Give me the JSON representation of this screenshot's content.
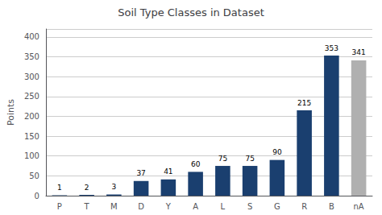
{
  "chart_data": {
    "type": "bar",
    "title": "Soil Type Classes in Dataset",
    "ylabel": "Points",
    "categories": [
      "P",
      "T",
      "M",
      "D",
      "Y",
      "A",
      "L",
      "S",
      "G",
      "R",
      "B",
      "nA"
    ],
    "values": [
      1,
      2,
      3,
      37,
      41,
      60,
      75,
      75,
      90,
      215,
      353,
      341
    ],
    "colors": [
      "#1a3f6f",
      "#1a3f6f",
      "#1a3f6f",
      "#1a3f6f",
      "#1a3f6f",
      "#1a3f6f",
      "#1a3f6f",
      "#1a3f6f",
      "#1a3f6f",
      "#1a3f6f",
      "#1a3f6f",
      "#b0b0b0"
    ],
    "ylim": [
      0,
      420
    ],
    "yticks": [
      0,
      50,
      100,
      150,
      200,
      250,
      300,
      350,
      400
    ],
    "grid": true,
    "data_labels": true
  }
}
